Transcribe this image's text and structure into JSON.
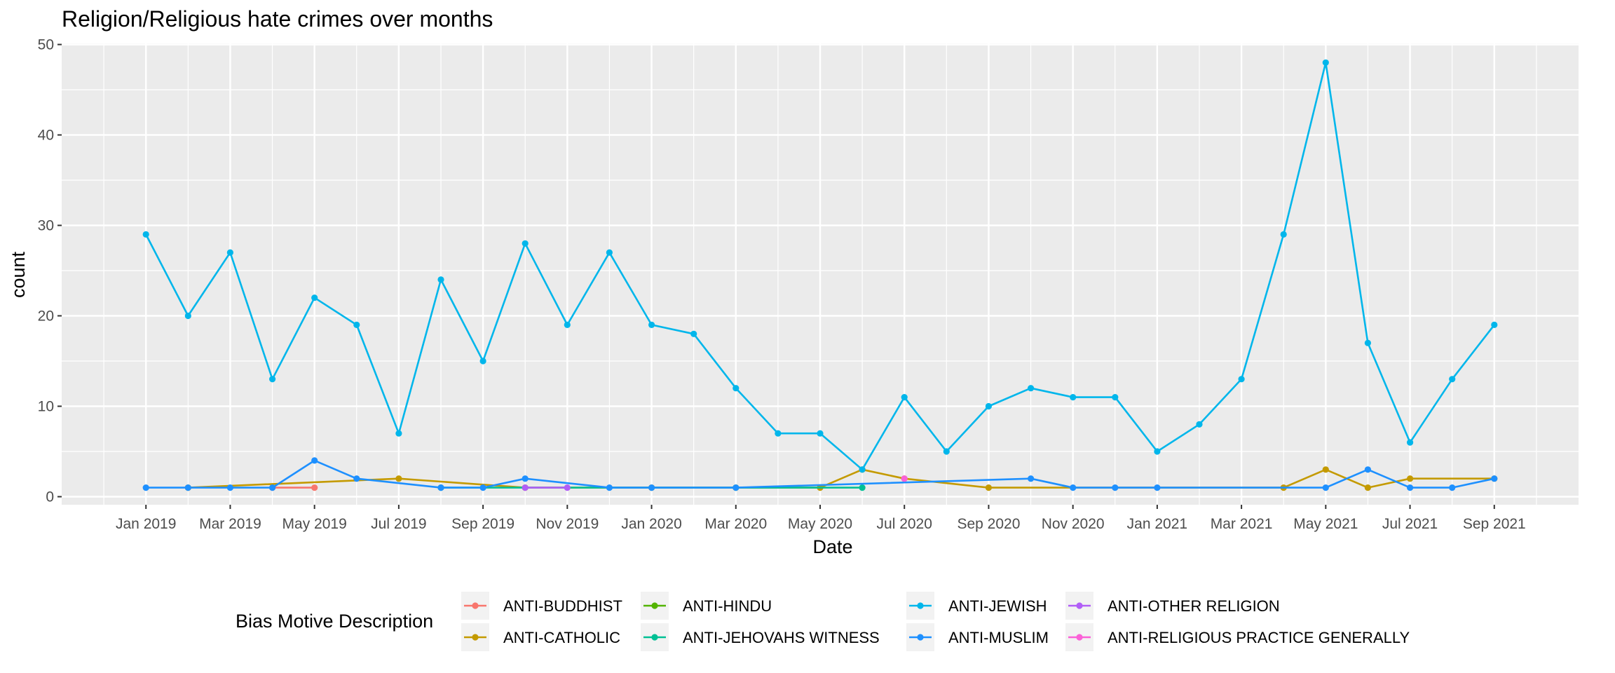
{
  "chart_data": {
    "type": "line",
    "title": "Religion/Religious hate crimes over months",
    "xlabel": "Date",
    "ylabel": "count",
    "ylim": [
      0,
      50
    ],
    "yticks": [
      0,
      10,
      20,
      30,
      40,
      50
    ],
    "x_range": [
      "2018-11",
      "2021-11"
    ],
    "xtick_labels": [
      "Jan 2019",
      "Mar 2019",
      "May 2019",
      "Jul 2019",
      "Sep 2019",
      "Nov 2019",
      "Jan 2020",
      "Mar 2020",
      "May 2020",
      "Jul 2020",
      "Sep 2020",
      "Nov 2020",
      "Jan 2021",
      "Mar 2021",
      "May 2021",
      "Jul 2021",
      "Sep 2021"
    ],
    "grid": true,
    "legend": {
      "title": "Bias Motive Description",
      "position": "bottom"
    },
    "series": [
      {
        "name": "ANTI-BUDDHIST",
        "color": "#F8766D",
        "x": [
          "2019-04",
          "2019-05"
        ],
        "y": [
          1,
          1
        ]
      },
      {
        "name": "ANTI-CATHOLIC",
        "color": "#C49A00",
        "x": [
          "2019-02",
          "2019-07",
          "2019-10",
          "2020-01",
          "2020-05",
          "2020-06",
          "2020-07",
          "2020-09",
          "2021-04",
          "2021-05",
          "2021-06",
          "2021-07",
          "2021-09"
        ],
        "y": [
          1,
          2,
          1,
          1,
          1,
          3,
          2,
          1,
          1,
          3,
          1,
          2,
          2
        ]
      },
      {
        "name": "ANTI-HINDU",
        "color": "#53B400",
        "x": [
          "2020-03"
        ],
        "y": [
          1
        ]
      },
      {
        "name": "ANTI-JEHOVAHS WITNESS",
        "color": "#00C094",
        "x": [
          "2019-08",
          "2020-06"
        ],
        "y": [
          1,
          1
        ]
      },
      {
        "name": "ANTI-JEWISH",
        "color": "#00B6EB",
        "x": [
          "2019-01",
          "2019-02",
          "2019-03",
          "2019-04",
          "2019-05",
          "2019-06",
          "2019-07",
          "2019-08",
          "2019-09",
          "2019-10",
          "2019-11",
          "2019-12",
          "2020-01",
          "2020-02",
          "2020-03",
          "2020-04",
          "2020-05",
          "2020-06",
          "2020-07",
          "2020-08",
          "2020-09",
          "2020-10",
          "2020-11",
          "2020-12",
          "2021-01",
          "2021-02",
          "2021-03",
          "2021-04",
          "2021-05",
          "2021-06",
          "2021-07",
          "2021-08",
          "2021-09"
        ],
        "y": [
          29,
          20,
          27,
          13,
          22,
          19,
          7,
          24,
          15,
          28,
          19,
          27,
          19,
          18,
          12,
          7,
          7,
          3,
          11,
          5,
          10,
          12,
          11,
          11,
          5,
          8,
          13,
          29,
          48,
          17,
          6,
          13,
          19
        ]
      },
      {
        "name": "ANTI-MUSLIM",
        "color": "#1E90FF",
        "x": [
          "2019-01",
          "2019-02",
          "2019-03",
          "2019-04",
          "2019-05",
          "2019-06",
          "2019-08",
          "2019-09",
          "2019-10",
          "2019-12",
          "2020-01",
          "2020-03",
          "2020-10",
          "2020-11",
          "2020-12",
          "2021-01",
          "2021-05",
          "2021-06",
          "2021-07",
          "2021-08",
          "2021-09"
        ],
        "y": [
          1,
          1,
          1,
          1,
          4,
          2,
          1,
          1,
          2,
          1,
          1,
          1,
          2,
          1,
          1,
          1,
          1,
          3,
          1,
          1,
          2
        ]
      },
      {
        "name": "ANTI-OTHER RELIGION",
        "color": "#B15EF7",
        "x": [
          "2019-10",
          "2019-11"
        ],
        "y": [
          1,
          1
        ]
      },
      {
        "name": "ANTI-RELIGIOUS PRACTICE GENERALLY",
        "color": "#FB61D7",
        "x": [
          "2020-07"
        ],
        "y": [
          2
        ]
      }
    ]
  }
}
